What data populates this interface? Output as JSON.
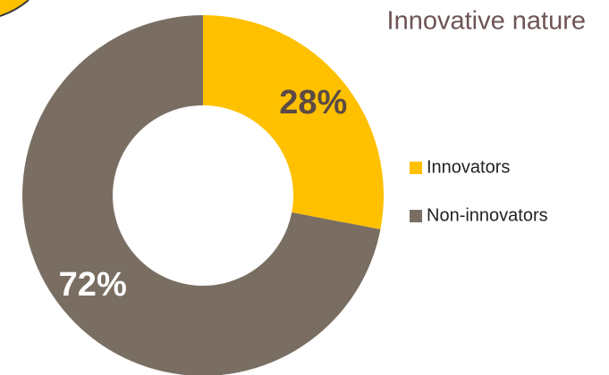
{
  "chart_data": {
    "type": "donut",
    "title": "Innovative nature",
    "categories": [
      "Innovators",
      "Non-innovators"
    ],
    "values": [
      28,
      72
    ],
    "value_labels": [
      "28%",
      "72%"
    ],
    "colors": [
      "#ffc000",
      "#7a6e62"
    ],
    "legend": "right"
  }
}
